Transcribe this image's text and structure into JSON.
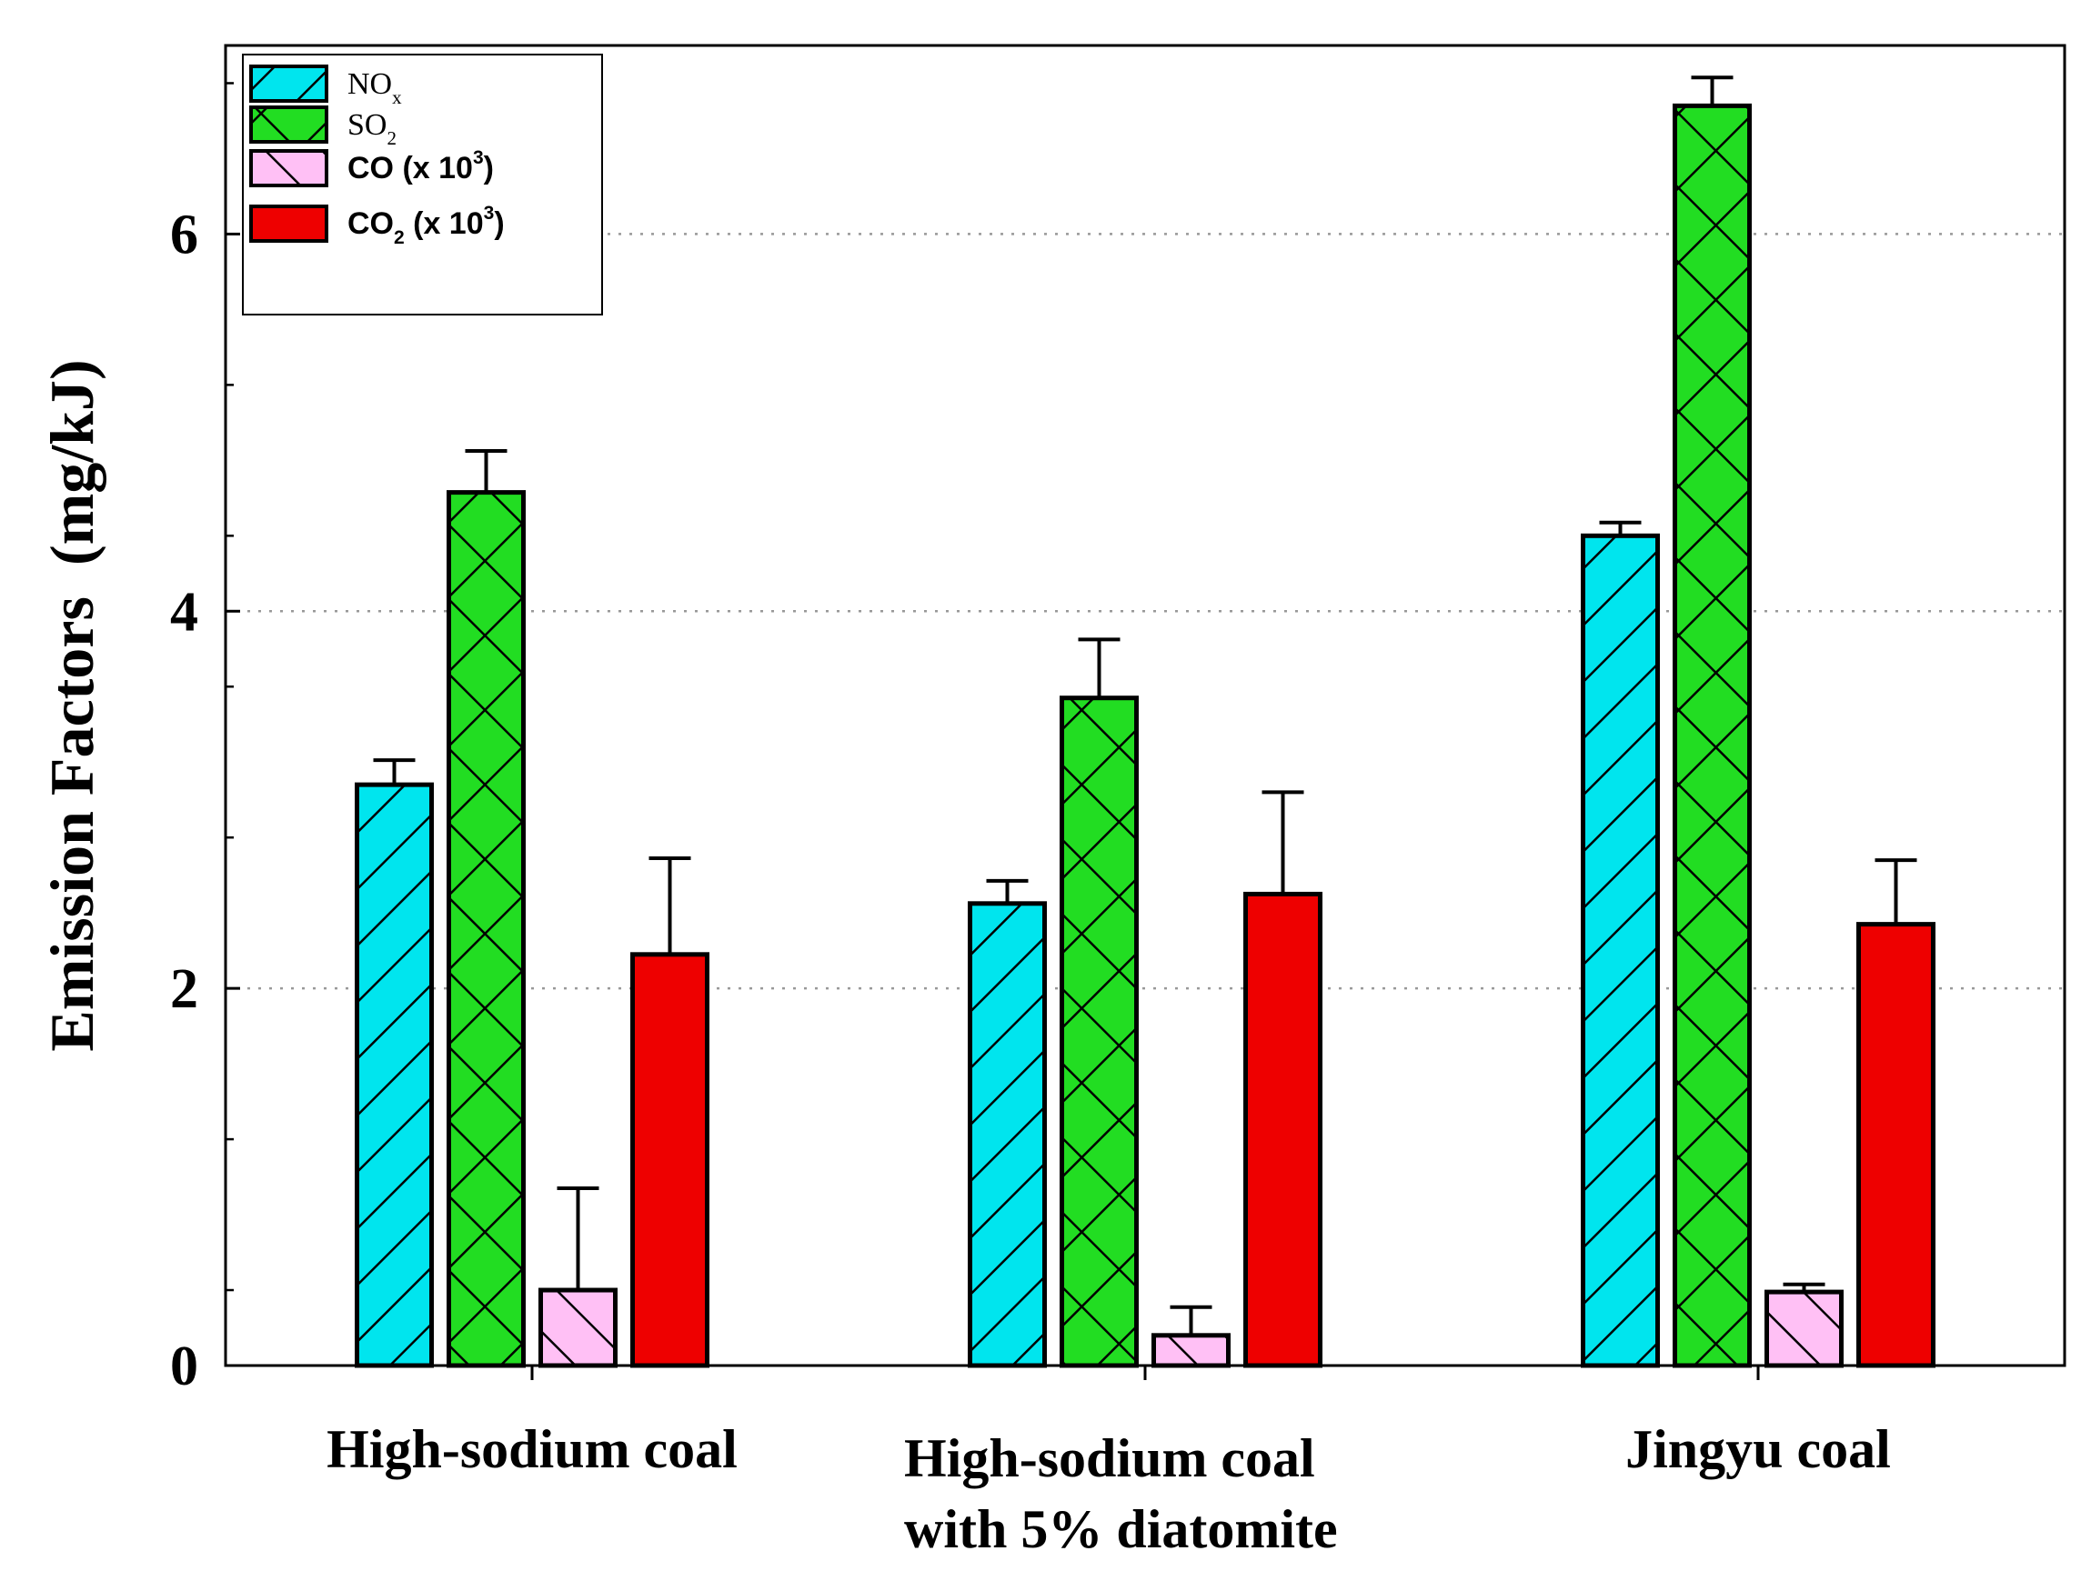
{
  "chart_data": {
    "type": "bar",
    "title": "",
    "xlabel": "",
    "ylabel": "Emission Factors  (mg/kJ)",
    "ylim": [
      0,
      7
    ],
    "yticks": [
      0,
      2,
      4,
      6
    ],
    "ytick_labels": [
      "0",
      "2",
      "4",
      "6"
    ],
    "grid": "horizontal dotted at major ticks",
    "legend_position": "top-left",
    "categories": [
      [
        "High-sodium coal"
      ],
      [
        "High-sodium coal",
        "with 5% diatomite"
      ],
      [
        "Jingyu coal"
      ]
    ],
    "series": [
      {
        "name": "NOx",
        "legend": {
          "base": "NO",
          "sub": "x",
          "suffix": "",
          "sup": "",
          "tail": ""
        },
        "color": "#00e5ee",
        "pattern": "back-diagonal hatch",
        "values": [
          3.08,
          2.45,
          4.4
        ],
        "errors": [
          0.13,
          0.12,
          0.07
        ]
      },
      {
        "name": "SO2",
        "legend": {
          "base": "SO",
          "sub": "2",
          "suffix": "",
          "sup": "",
          "tail": ""
        },
        "color": "#22dd22",
        "pattern": "cross hatch",
        "values": [
          4.63,
          3.54,
          6.68
        ],
        "errors": [
          0.22,
          0.31,
          0.15
        ]
      },
      {
        "name": "CO (x 10^3)",
        "legend": {
          "base": "CO (x 10",
          "sub": "",
          "suffix": "",
          "sup": "3",
          "tail": ")"
        },
        "color": "#ffc0f5",
        "pattern": "forward-diagonal hatch",
        "values": [
          0.4,
          0.16,
          0.39
        ],
        "errors": [
          0.54,
          0.15,
          0.04
        ]
      },
      {
        "name": "CO2 (x 10^3)",
        "legend": {
          "base": "CO",
          "sub": "2",
          "suffix": " (x 10",
          "sup": "3",
          "tail": ")"
        },
        "color": "#ee0000",
        "pattern": "solid",
        "values": [
          2.18,
          2.5,
          2.34
        ],
        "errors": [
          0.51,
          0.54,
          0.34
        ]
      }
    ]
  }
}
